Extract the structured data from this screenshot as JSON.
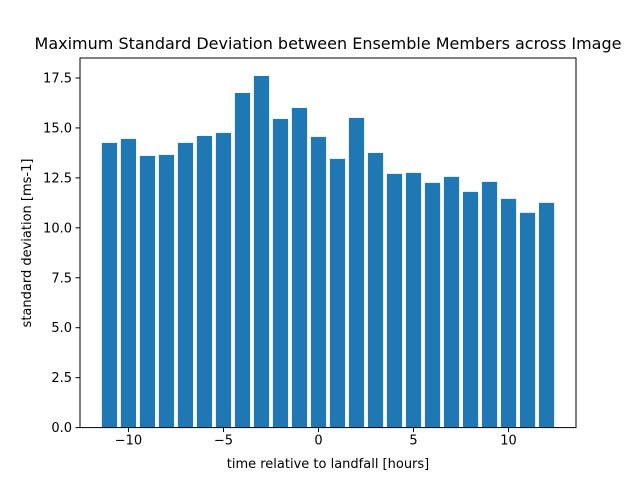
{
  "chart_data": {
    "type": "bar",
    "title": "Maximum Standard Deviation between Ensemble Members across Image",
    "xlabel": "time relative to landfall [hours]",
    "ylabel": "standard deviation [ms-1]",
    "x": [
      -11,
      -10,
      -9,
      -8,
      -7,
      -6,
      -5,
      -4,
      -3,
      -2,
      -1,
      0,
      1,
      2,
      3,
      4,
      5,
      6,
      7,
      8,
      9,
      10,
      11,
      12
    ],
    "values": [
      14.25,
      14.45,
      13.6,
      13.65,
      14.25,
      14.6,
      14.75,
      16.75,
      17.6,
      15.45,
      16.0,
      14.55,
      13.45,
      15.5,
      13.75,
      12.7,
      12.75,
      12.25,
      12.55,
      11.8,
      12.3,
      11.45,
      10.75,
      11.25
    ],
    "bar_width": 0.8,
    "xlim": [
      -12.55,
      13.55
    ],
    "ylim": [
      0,
      18.5
    ],
    "xticks": [
      -10,
      -5,
      0,
      5,
      10
    ],
    "xtick_labels": [
      "−10",
      "−5",
      "0",
      "5",
      "10"
    ],
    "yticks": [
      0,
      2.5,
      5,
      7.5,
      10,
      12.5,
      15,
      17.5
    ],
    "ytick_labels": [
      "0.0",
      "2.5",
      "5.0",
      "7.5",
      "10.0",
      "12.5",
      "15.0",
      "17.5"
    ],
    "bar_color": "#1f77b4",
    "grid": false,
    "legend": "none"
  }
}
